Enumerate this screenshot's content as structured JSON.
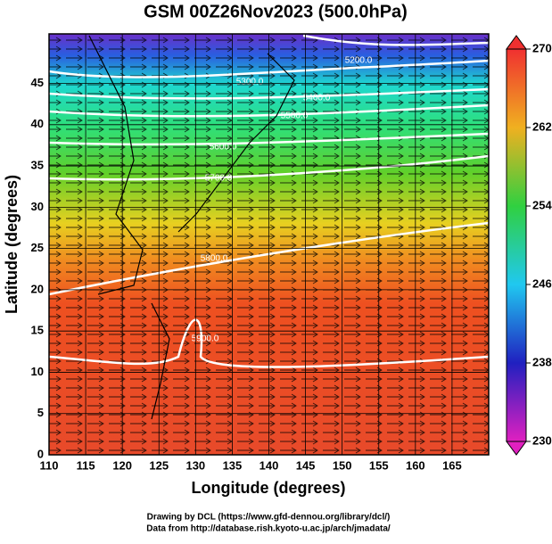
{
  "title": "GSM 00Z26Nov2023 (500.0hPa)",
  "x_label": "Longitude (degrees)",
  "y_label": "Latitude  (degrees)",
  "xlim": [
    110,
    170
  ],
  "xticks": [
    110,
    115,
    120,
    125,
    130,
    135,
    140,
    145,
    150,
    155,
    160,
    165
  ],
  "ylim": [
    0,
    51
  ],
  "yticks": [
    0,
    5,
    10,
    15,
    20,
    25,
    30,
    35,
    40,
    45
  ],
  "colorbar": {
    "lim": [
      230,
      270
    ],
    "ticks": [
      230,
      238,
      246,
      254,
      262,
      270
    ]
  },
  "contour_labels": [
    "5200.0",
    "5300.0",
    "5400.0",
    "5500.0",
    "5600.0",
    "5700.0",
    "5800.0",
    "5900.0"
  ],
  "credits": [
    "Drawing by DCL (https://www.gfd-dennou.org/library/dcl/)",
    "Data from http://database.rish.kyoto-u.ac.jp/arch/jmadata/"
  ]
}
